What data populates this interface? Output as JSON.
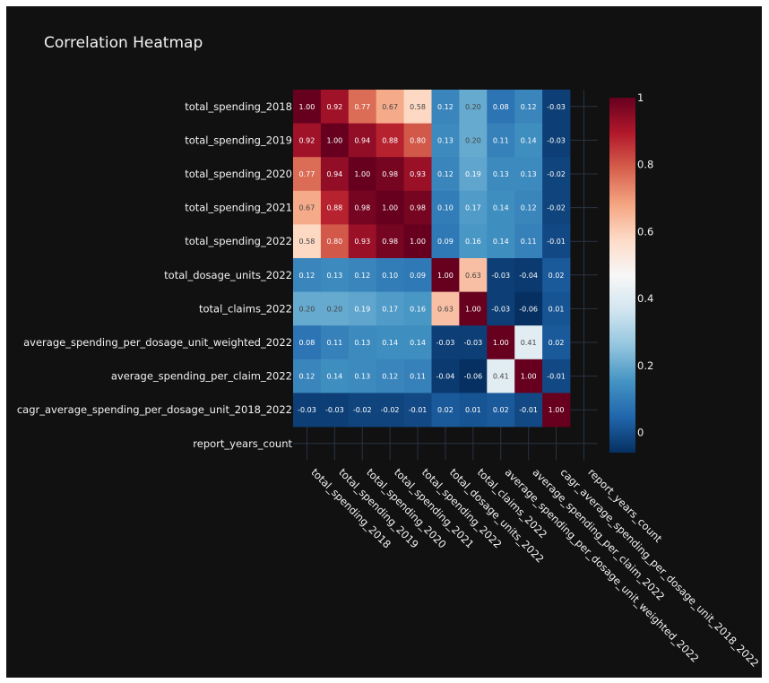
{
  "chart_data": {
    "type": "heatmap",
    "title": "Correlation Heatmap",
    "x_labels": [
      "total_spending_2018",
      "total_spending_2019",
      "total_spending_2020",
      "total_spending_2021",
      "total_spending_2022",
      "total_dosage_units_2022",
      "total_claims_2022",
      "average_spending_per_dosage_unit_weighted_2022",
      "average_spending_per_claim_2022",
      "cagr_average_spending_per_dosage_unit_2018_2022",
      "report_years_count"
    ],
    "y_labels": [
      "total_spending_2018",
      "total_spending_2019",
      "total_spending_2020",
      "total_spending_2021",
      "total_spending_2022",
      "total_dosage_units_2022",
      "total_claims_2022",
      "average_spending_per_dosage_unit_weighted_2022",
      "average_spending_per_claim_2022",
      "cagr_average_spending_per_dosage_unit_2018_2022",
      "report_years_count"
    ],
    "z": [
      [
        1.0,
        0.92,
        0.77,
        0.67,
        0.58,
        0.12,
        0.2,
        0.08,
        0.12,
        -0.03,
        null
      ],
      [
        0.92,
        1.0,
        0.94,
        0.88,
        0.8,
        0.13,
        0.2,
        0.11,
        0.14,
        -0.03,
        null
      ],
      [
        0.77,
        0.94,
        1.0,
        0.98,
        0.93,
        0.12,
        0.19,
        0.13,
        0.13,
        -0.02,
        null
      ],
      [
        0.67,
        0.88,
        0.98,
        1.0,
        0.98,
        0.1,
        0.17,
        0.14,
        0.12,
        -0.02,
        null
      ],
      [
        0.58,
        0.8,
        0.93,
        0.98,
        1.0,
        0.09,
        0.16,
        0.14,
        0.11,
        -0.01,
        null
      ],
      [
        0.12,
        0.13,
        0.12,
        0.1,
        0.09,
        1.0,
        0.63,
        -0.03,
        -0.04,
        0.02,
        null
      ],
      [
        0.2,
        0.2,
        0.19,
        0.17,
        0.16,
        0.63,
        1.0,
        -0.03,
        -0.06,
        0.01,
        null
      ],
      [
        0.08,
        0.11,
        0.13,
        0.14,
        0.14,
        -0.03,
        -0.03,
        1.0,
        0.41,
        0.02,
        null
      ],
      [
        0.12,
        0.14,
        0.13,
        0.12,
        0.11,
        -0.04,
        -0.06,
        0.41,
        1.0,
        -0.01,
        null
      ],
      [
        -0.03,
        -0.03,
        -0.02,
        -0.02,
        -0.01,
        0.02,
        0.01,
        0.02,
        -0.01,
        1.0,
        null
      ],
      [
        null,
        null,
        null,
        null,
        null,
        null,
        null,
        null,
        null,
        null,
        null
      ]
    ],
    "colorscale": "RdBu_r",
    "zmin": -0.06,
    "zmax": 1.0,
    "colorbar_ticks": [
      0,
      0.2,
      0.4,
      0.6,
      0.8,
      1
    ],
    "colorbar_tick_labels": [
      "0",
      "0.2",
      "0.4",
      "0.6",
      "0.8",
      "1"
    ],
    "value_format": "2 decimals",
    "theme": {
      "background": "#111111",
      "text_color": "#f2f2f2",
      "grid_color": "#283442"
    }
  }
}
